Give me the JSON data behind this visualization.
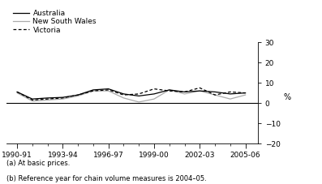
{
  "x_labels": [
    "1990-91",
    "1993-94",
    "1996-97",
    "1999-00",
    "2002-03",
    "2005-06"
  ],
  "x_tick_positions": [
    1990.5,
    1993.5,
    1996.5,
    1999.5,
    2002.5,
    2005.5
  ],
  "x_minor_ticks": [
    1991.5,
    1992.5,
    1994.5,
    1995.5,
    1997.5,
    1998.5,
    2000.5,
    2001.5,
    2003.5,
    2004.5
  ],
  "x_values": [
    1990.5,
    1991.5,
    1992.5,
    1993.5,
    1994.5,
    1995.5,
    1996.5,
    1997.5,
    1998.5,
    1999.5,
    2000.5,
    2001.5,
    2002.5,
    2003.5,
    2004.5,
    2005.5
  ],
  "australia": [
    5.5,
    2.0,
    2.5,
    2.8,
    4.0,
    6.5,
    7.0,
    4.5,
    3.5,
    4.5,
    6.5,
    5.5,
    6.0,
    5.5,
    4.5,
    5.0
  ],
  "nsw": [
    5.0,
    1.0,
    1.5,
    2.0,
    3.5,
    6.0,
    6.0,
    2.5,
    0.5,
    2.0,
    6.5,
    4.5,
    6.0,
    4.0,
    2.0,
    4.0
  ],
  "victoria": [
    5.5,
    1.5,
    2.0,
    2.5,
    4.0,
    6.0,
    6.5,
    4.0,
    4.5,
    7.0,
    6.0,
    5.5,
    7.5,
    4.0,
    5.5,
    5.0
  ],
  "ylim": [
    -20,
    30
  ],
  "yticks": [
    -20,
    -10,
    0,
    10,
    20,
    30
  ],
  "xlim": [
    1989.8,
    2006.3
  ],
  "australia_color": "#000000",
  "nsw_color": "#aaaaaa",
  "victoria_color": "#000000",
  "legend_labels": [
    "Australia",
    "New South Wales",
    "Victoria"
  ],
  "ylabel": "%",
  "footnote1": "(a) At basic prices.",
  "footnote2": "(b) Reference year for chain volume measures is 2004–05.",
  "background_color": "#ffffff"
}
